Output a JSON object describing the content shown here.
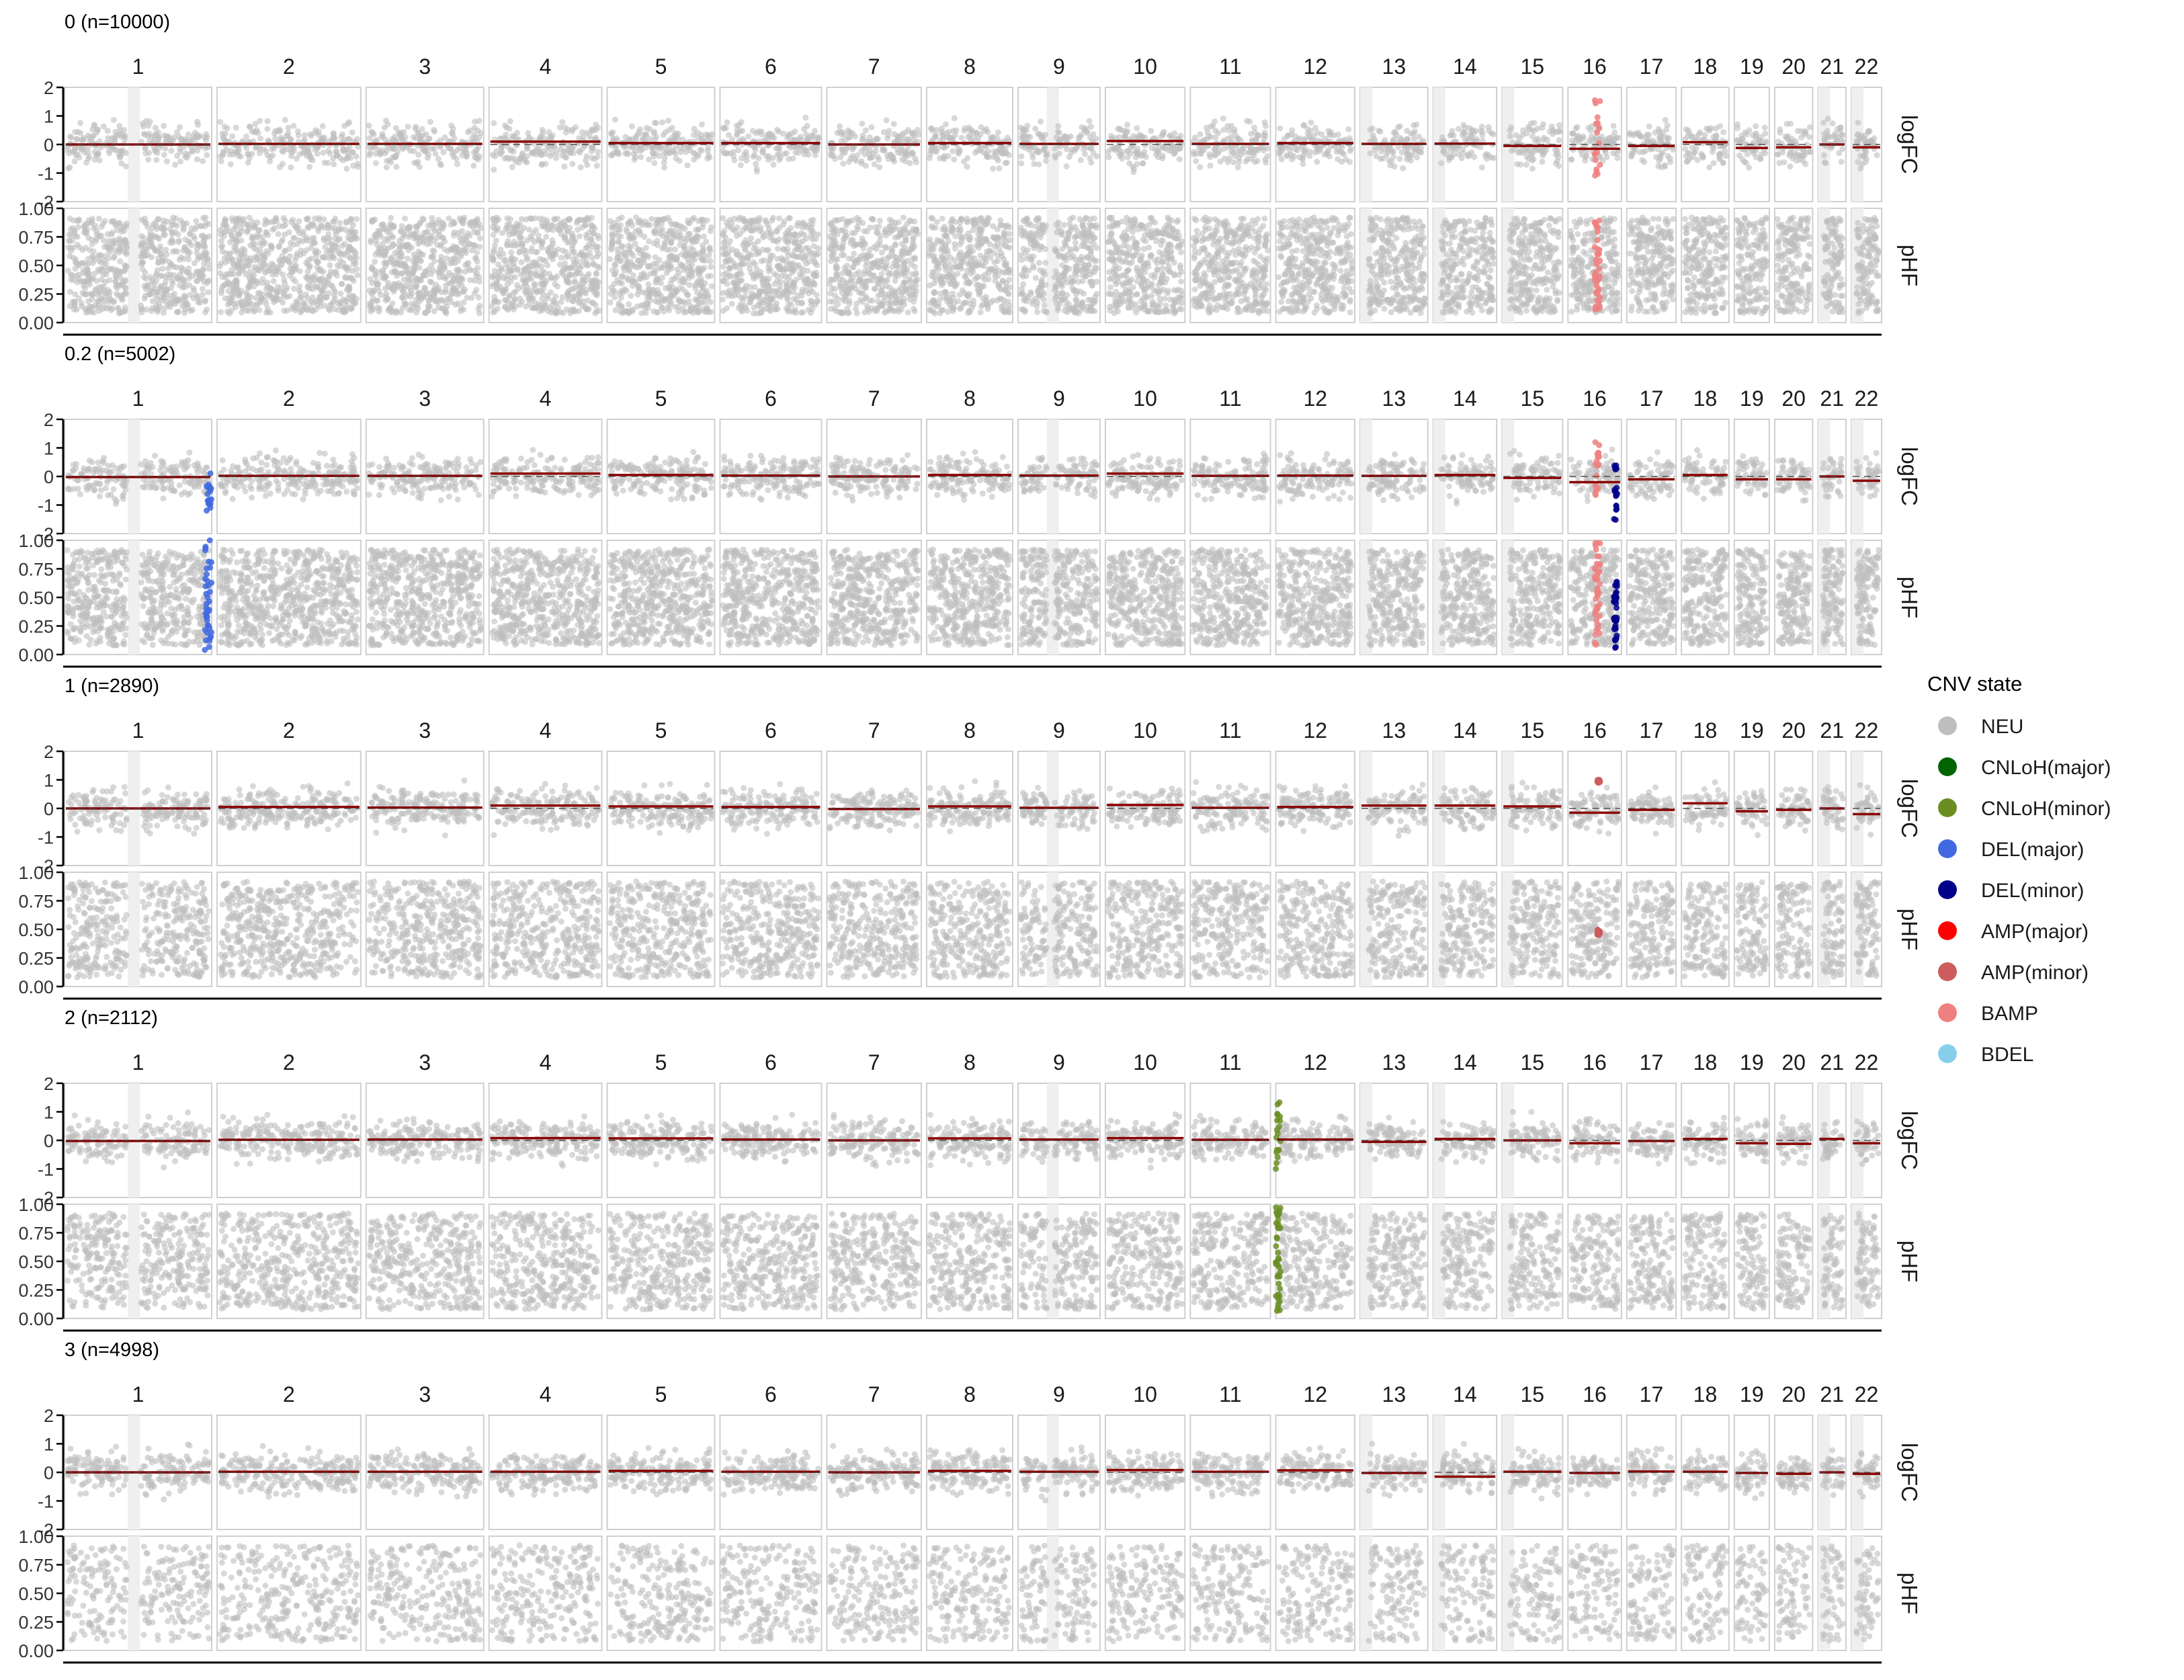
{
  "chart_data": {
    "type": "scatter",
    "chromosomes": [
      "1",
      "2",
      "3",
      "4",
      "5",
      "6",
      "7",
      "8",
      "9",
      "10",
      "11",
      "12",
      "13",
      "14",
      "15",
      "16",
      "17",
      "18",
      "19",
      "20",
      "21",
      "22"
    ],
    "chromosome_relative_sizes": [
      248,
      242,
      198,
      190,
      181,
      171,
      159,
      145,
      138,
      134,
      135,
      133,
      114,
      107,
      102,
      90,
      83,
      80,
      59,
      64,
      47,
      51
    ],
    "facet_rows": [
      "logFC",
      "pHF"
    ],
    "y_axes": {
      "logFC": {
        "ylim": [
          -2,
          2
        ],
        "ticks": [
          2,
          1,
          0,
          -1,
          -2
        ],
        "tick_labels": [
          "2",
          "1",
          "0",
          "-1",
          "-2"
        ]
      },
      "pHF": {
        "ylim": [
          0,
          1
        ],
        "ticks": [
          1.0,
          0.75,
          0.5,
          0.25,
          0.0
        ],
        "tick_labels": [
          "1.00",
          "0.75",
          "0.50",
          "0.25",
          "0.00"
        ]
      }
    },
    "legend": {
      "title": "CNV state",
      "placement": "right",
      "items": [
        {
          "label": "NEU",
          "color": "#bebebe"
        },
        {
          "label": "CNLoH(major)",
          "color": "#006400"
        },
        {
          "label": "CNLoH(minor)",
          "color": "#6b8e23"
        },
        {
          "label": "DEL(major)",
          "color": "#4169e1"
        },
        {
          "label": "DEL(minor)",
          "color": "#00008b"
        },
        {
          "label": "AMP(major)",
          "color": "#ff0000"
        },
        {
          "label": "AMP(minor)",
          "color": "#cd5c5c"
        },
        {
          "label": "BAMP",
          "color": "#f08080"
        },
        {
          "label": "BDEL",
          "color": "#87ceeb"
        }
      ]
    },
    "segment_color": "#8b0000",
    "panels": [
      {
        "title": "0 (n=10000)",
        "phf_density": 1.0,
        "segments": [
          {
            "chr": "1",
            "logFC": 0.0
          },
          {
            "chr": "2",
            "logFC": 0.02
          },
          {
            "chr": "3",
            "logFC": 0.02
          },
          {
            "chr": "4",
            "logFC": 0.1
          },
          {
            "chr": "5",
            "logFC": 0.05
          },
          {
            "chr": "6",
            "logFC": 0.05
          },
          {
            "chr": "7",
            "logFC": 0.0
          },
          {
            "chr": "8",
            "logFC": 0.05
          },
          {
            "chr": "9",
            "logFC": 0.02
          },
          {
            "chr": "10",
            "logFC": 0.12
          },
          {
            "chr": "11",
            "logFC": 0.02
          },
          {
            "chr": "12",
            "logFC": 0.05
          },
          {
            "chr": "13",
            "logFC": 0.02
          },
          {
            "chr": "14",
            "logFC": 0.03
          },
          {
            "chr": "15",
            "logFC": -0.05
          },
          {
            "chr": "16",
            "logFC": -0.15
          },
          {
            "chr": "17",
            "logFC": -0.05
          },
          {
            "chr": "18",
            "logFC": 0.08
          },
          {
            "chr": "19",
            "logFC": -0.12
          },
          {
            "chr": "20",
            "logFC": -0.1
          },
          {
            "chr": "21",
            "logFC": 0.0
          },
          {
            "chr": "22",
            "logFC": -0.1
          }
        ],
        "cnv_regions": [
          {
            "chr": "16",
            "start_frac": 0.5,
            "end_frac": 0.6,
            "state": "BAMP",
            "logFC_range": [
              -1.6,
              1.6
            ],
            "pHF_range": [
              0.05,
              0.95
            ]
          }
        ]
      },
      {
        "title": "0.2 (n=5002)",
        "phf_density": 1.0,
        "segments": [
          {
            "chr": "1",
            "logFC": -0.02
          },
          {
            "chr": "2",
            "logFC": 0.02
          },
          {
            "chr": "3",
            "logFC": 0.02
          },
          {
            "chr": "4",
            "logFC": 0.1
          },
          {
            "chr": "5",
            "logFC": 0.05
          },
          {
            "chr": "6",
            "logFC": 0.03
          },
          {
            "chr": "7",
            "logFC": 0.0
          },
          {
            "chr": "8",
            "logFC": 0.05
          },
          {
            "chr": "9",
            "logFC": 0.03
          },
          {
            "chr": "10",
            "logFC": 0.1
          },
          {
            "chr": "11",
            "logFC": 0.02
          },
          {
            "chr": "12",
            "logFC": 0.03
          },
          {
            "chr": "13",
            "logFC": 0.02
          },
          {
            "chr": "14",
            "logFC": 0.05
          },
          {
            "chr": "15",
            "logFC": -0.05
          },
          {
            "chr": "16",
            "logFC": -0.2
          },
          {
            "chr": "17",
            "logFC": -0.1
          },
          {
            "chr": "18",
            "logFC": 0.05
          },
          {
            "chr": "19",
            "logFC": -0.1
          },
          {
            "chr": "20",
            "logFC": -0.1
          },
          {
            "chr": "21",
            "logFC": 0.0
          },
          {
            "chr": "22",
            "logFC": -0.15
          }
        ],
        "cnv_regions": [
          {
            "chr": "1",
            "start_frac": 0.95,
            "end_frac": 1.0,
            "state": "DEL(major)",
            "logFC_range": [
              -1.2,
              0.5
            ],
            "pHF_range": [
              0.0,
              1.0
            ]
          },
          {
            "chr": "16",
            "start_frac": 0.5,
            "end_frac": 0.6,
            "state": "BAMP",
            "logFC_range": [
              -0.8,
              1.2
            ],
            "pHF_range": [
              0.05,
              1.0
            ]
          },
          {
            "chr": "16",
            "start_frac": 0.86,
            "end_frac": 0.92,
            "state": "DEL(minor)",
            "logFC_range": [
              -1.6,
              0.4
            ],
            "pHF_range": [
              0.05,
              0.65
            ]
          }
        ]
      },
      {
        "title": "1 (n=2890)",
        "phf_density": 0.72,
        "segments": [
          {
            "chr": "1",
            "logFC": 0.0
          },
          {
            "chr": "2",
            "logFC": 0.05
          },
          {
            "chr": "3",
            "logFC": 0.03
          },
          {
            "chr": "4",
            "logFC": 0.1
          },
          {
            "chr": "5",
            "logFC": 0.07
          },
          {
            "chr": "6",
            "logFC": 0.05
          },
          {
            "chr": "7",
            "logFC": -0.02
          },
          {
            "chr": "8",
            "logFC": 0.07
          },
          {
            "chr": "9",
            "logFC": 0.02
          },
          {
            "chr": "10",
            "logFC": 0.12
          },
          {
            "chr": "11",
            "logFC": 0.02
          },
          {
            "chr": "12",
            "logFC": 0.05
          },
          {
            "chr": "13",
            "logFC": 0.1
          },
          {
            "chr": "14",
            "logFC": 0.1
          },
          {
            "chr": "15",
            "logFC": 0.07
          },
          {
            "chr": "16",
            "logFC": -0.15
          },
          {
            "chr": "17",
            "logFC": -0.05
          },
          {
            "chr": "18",
            "logFC": 0.18
          },
          {
            "chr": "19",
            "logFC": -0.1
          },
          {
            "chr": "20",
            "logFC": -0.05
          },
          {
            "chr": "21",
            "logFC": 0.0
          },
          {
            "chr": "22",
            "logFC": -0.2
          }
        ],
        "cnv_regions": [
          {
            "chr": "16",
            "start_frac": 0.55,
            "end_frac": 0.6,
            "state": "AMP(minor)",
            "logFC_range": [
              0.9,
              1.0
            ],
            "pHF_range": [
              0.45,
              0.5
            ]
          }
        ]
      },
      {
        "title": "2 (n=2112)",
        "phf_density": 0.66,
        "segments": [
          {
            "chr": "1",
            "logFC": -0.02
          },
          {
            "chr": "2",
            "logFC": 0.02
          },
          {
            "chr": "3",
            "logFC": 0.03
          },
          {
            "chr": "4",
            "logFC": 0.08
          },
          {
            "chr": "5",
            "logFC": 0.07
          },
          {
            "chr": "6",
            "logFC": 0.03
          },
          {
            "chr": "7",
            "logFC": 0.0
          },
          {
            "chr": "8",
            "logFC": 0.07
          },
          {
            "chr": "9",
            "logFC": 0.03
          },
          {
            "chr": "10",
            "logFC": 0.08
          },
          {
            "chr": "11",
            "logFC": 0.02
          },
          {
            "chr": "12",
            "logFC": 0.03
          },
          {
            "chr": "13",
            "logFC": -0.05
          },
          {
            "chr": "14",
            "logFC": 0.05
          },
          {
            "chr": "15",
            "logFC": 0.0
          },
          {
            "chr": "16",
            "logFC": -0.1
          },
          {
            "chr": "17",
            "logFC": -0.02
          },
          {
            "chr": "18",
            "logFC": 0.05
          },
          {
            "chr": "19",
            "logFC": -0.1
          },
          {
            "chr": "20",
            "logFC": -0.12
          },
          {
            "chr": "21",
            "logFC": 0.05
          },
          {
            "chr": "22",
            "logFC": -0.1
          }
        ],
        "cnv_regions": [
          {
            "chr": "12",
            "start_frac": 0.0,
            "end_frac": 0.06,
            "state": "CNLoH(minor)",
            "logFC_range": [
              -1.2,
              1.8
            ],
            "pHF_range": [
              0.05,
              1.0
            ]
          }
        ]
      },
      {
        "title": "3 (n=4998)",
        "phf_density": 0.45,
        "segments": [
          {
            "chr": "1",
            "logFC": 0.0
          },
          {
            "chr": "2",
            "logFC": 0.02
          },
          {
            "chr": "3",
            "logFC": 0.02
          },
          {
            "chr": "4",
            "logFC": 0.02
          },
          {
            "chr": "5",
            "logFC": 0.05
          },
          {
            "chr": "6",
            "logFC": 0.02
          },
          {
            "chr": "7",
            "logFC": 0.0
          },
          {
            "chr": "8",
            "logFC": 0.05
          },
          {
            "chr": "9",
            "logFC": 0.02
          },
          {
            "chr": "10",
            "logFC": 0.08
          },
          {
            "chr": "11",
            "logFC": 0.02
          },
          {
            "chr": "12",
            "logFC": 0.07
          },
          {
            "chr": "13",
            "logFC": -0.02
          },
          {
            "chr": "14",
            "logFC": -0.15
          },
          {
            "chr": "15",
            "logFC": 0.02
          },
          {
            "chr": "16",
            "logFC": -0.02
          },
          {
            "chr": "17",
            "logFC": 0.03
          },
          {
            "chr": "18",
            "logFC": 0.02
          },
          {
            "chr": "19",
            "logFC": -0.02
          },
          {
            "chr": "20",
            "logFC": -0.05
          },
          {
            "chr": "21",
            "logFC": 0.0
          },
          {
            "chr": "22",
            "logFC": -0.05
          }
        ],
        "cnv_regions": []
      }
    ]
  }
}
